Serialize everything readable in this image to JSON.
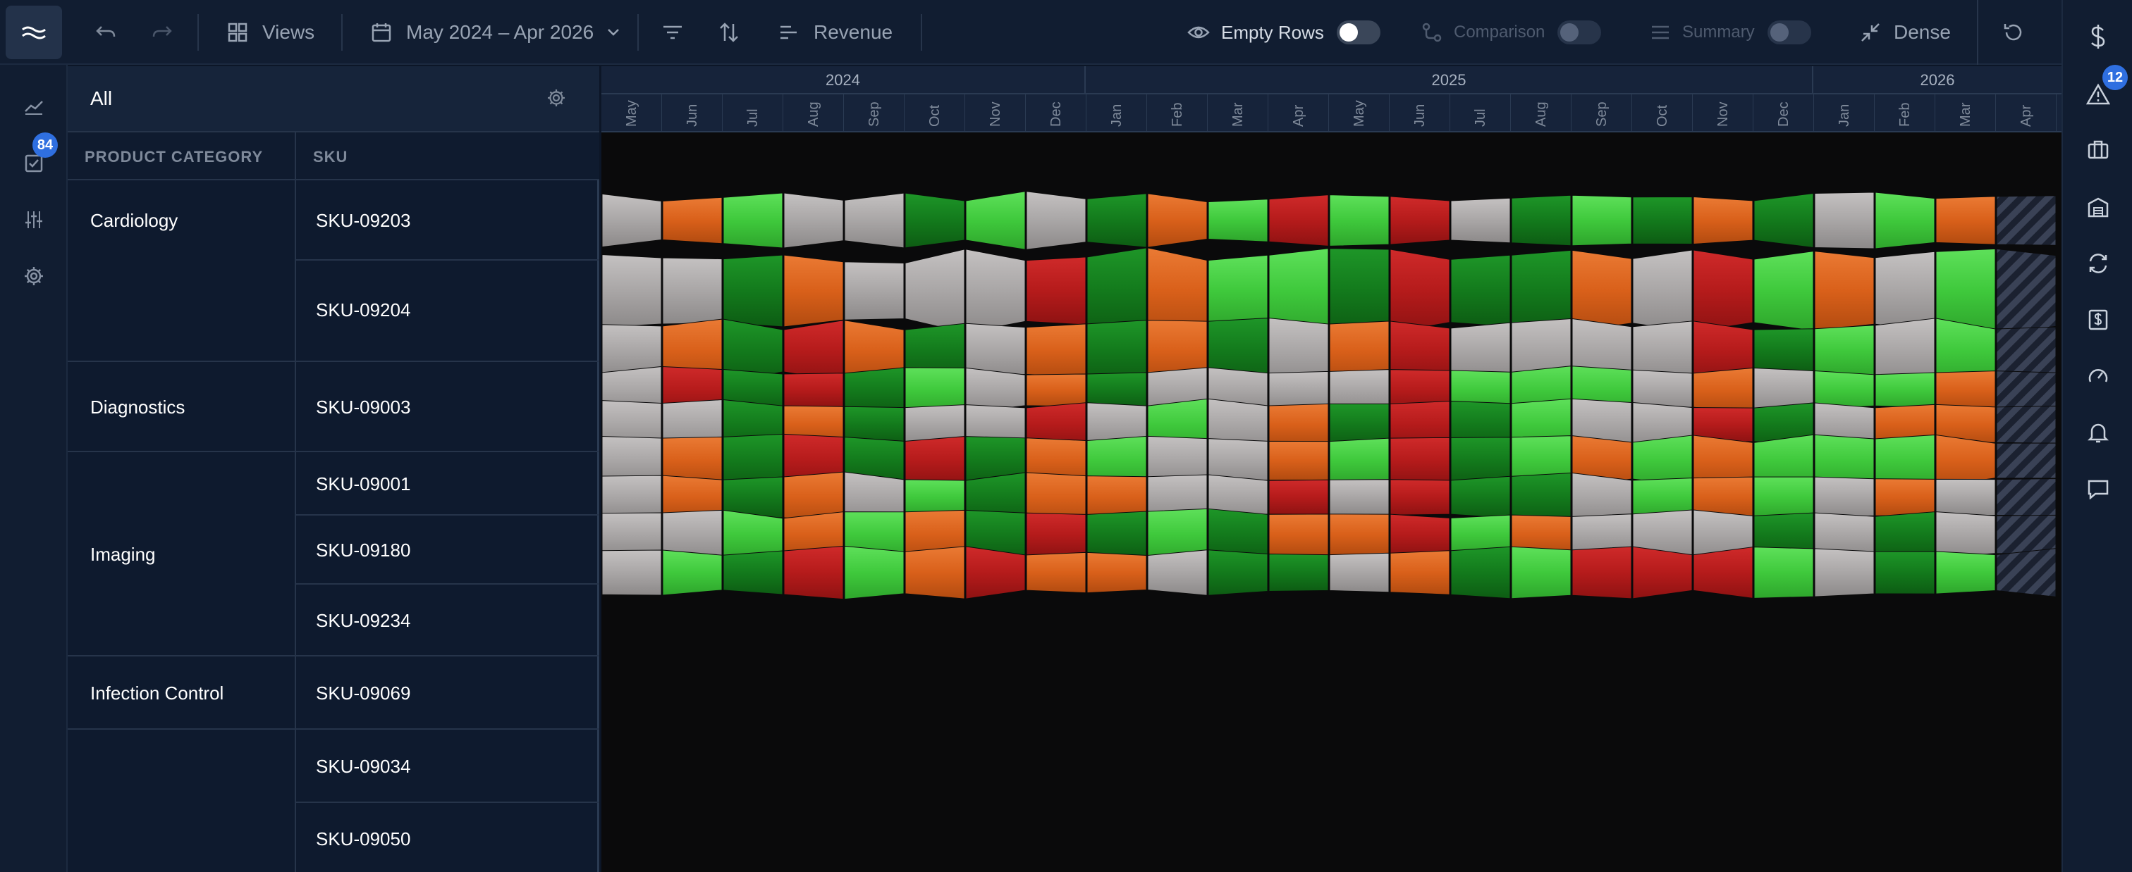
{
  "toolbar": {
    "views_label": "Views",
    "date_range": "May 2024 – Apr 2026",
    "measure_label": "Revenue",
    "empty_rows_label": "Empty Rows",
    "comparison_label": "Comparison",
    "summary_label": "Summary",
    "dense_label": "Dense"
  },
  "left_rail": {
    "tasks_badge": "84"
  },
  "right_rail": {
    "alerts_badge": "12"
  },
  "panel": {
    "filter_label": "All",
    "header_category": "PRODUCT CATEGORY",
    "header_sku": "SKU",
    "categories": [
      "Cardiology",
      "Diagnostics",
      "Imaging",
      "Infection Control"
    ],
    "skus": [
      "SKU-09203",
      "SKU-09204",
      "SKU-09003",
      "SKU-09001",
      "SKU-09180",
      "SKU-09234",
      "SKU-09069",
      "SKU-09034",
      "SKU-09050"
    ]
  },
  "timeline": {
    "years": [
      "2024",
      "2025",
      "2026"
    ],
    "months": [
      "May",
      "Jun",
      "Jul",
      "Aug",
      "Sep",
      "Oct",
      "Nov",
      "Dec",
      "Jan",
      "Feb",
      "Mar",
      "Apr",
      "May",
      "Jun",
      "Jul",
      "Aug",
      "Sep",
      "Oct",
      "Nov",
      "Dec",
      "Jan",
      "Feb",
      "Mar",
      "Apr"
    ]
  },
  "colors": {
    "gray": "#a9a6a6",
    "orange": "#d9601a",
    "light_green": "#3fc93c",
    "dark_green": "#137a1c",
    "red": "#b51b1b",
    "forecast_stripe": "#3a4256"
  },
  "heatmap": {
    "legend_codes": {
      "g": "gray",
      "o": "orange",
      "l": "light_green",
      "d": "dark_green",
      "r": "red",
      "x": "forecast_stripe"
    },
    "rows": [
      {
        "sku": "SKU-09203",
        "cells": [
          "g",
          "o",
          "l",
          "g",
          "g",
          "d",
          "l",
          "g",
          "d",
          "o",
          "l",
          "r",
          "l",
          "r",
          "g",
          "d",
          "l",
          "d",
          "o",
          "d",
          "g",
          "l",
          "o",
          "x"
        ]
      },
      {
        "sku": "SKU-09204",
        "cells": [
          "g",
          "g",
          "d",
          "o",
          "g",
          "g",
          "g",
          "r",
          "d",
          "o",
          "l",
          "l",
          "d",
          "r",
          "d",
          "d",
          "o",
          "g",
          "r",
          "l",
          "o",
          "g",
          "l",
          "x"
        ]
      },
      {
        "sku": "SKU-09003",
        "cells": [
          "g",
          "o",
          "d",
          "r",
          "o",
          "d",
          "g",
          "o",
          "d",
          "o",
          "d",
          "g",
          "o",
          "r",
          "g",
          "g",
          "g",
          "g",
          "r",
          "d",
          "l",
          "g",
          "l",
          "x"
        ]
      },
      {
        "sku": "SKU-09001",
        "cells": [
          "g",
          "r",
          "d",
          "r",
          "d",
          "l",
          "g",
          "o",
          "d",
          "g",
          "g",
          "g",
          "g",
          "r",
          "l",
          "l",
          "l",
          "g",
          "o",
          "g",
          "l",
          "l",
          "o",
          "x"
        ]
      },
      {
        "sku": "SKU-09180",
        "cells": [
          "g",
          "g",
          "d",
          "o",
          "d",
          "g",
          "g",
          "r",
          "g",
          "l",
          "g",
          "o",
          "d",
          "r",
          "d",
          "l",
          "g",
          "g",
          "r",
          "d",
          "g",
          "o",
          "o",
          "x"
        ]
      },
      {
        "sku": "SKU-09234",
        "cells": [
          "g",
          "o",
          "d",
          "r",
          "d",
          "r",
          "d",
          "o",
          "l",
          "g",
          "g",
          "o",
          "l",
          "r",
          "d",
          "l",
          "o",
          "l",
          "o",
          "l",
          "l",
          "l",
          "o",
          "x"
        ]
      },
      {
        "sku": "SKU-09069",
        "cells": [
          "g",
          "o",
          "d",
          "o",
          "g",
          "l",
          "d",
          "o",
          "o",
          "g",
          "g",
          "r",
          "g",
          "r",
          "d",
          "d",
          "g",
          "l",
          "o",
          "l",
          "g",
          "o",
          "g",
          "x"
        ]
      },
      {
        "sku": "SKU-09034",
        "cells": [
          "g",
          "g",
          "l",
          "o",
          "l",
          "o",
          "d",
          "r",
          "d",
          "l",
          "d",
          "o",
          "o",
          "r",
          "l",
          "o",
          "g",
          "g",
          "g",
          "d",
          "g",
          "d",
          "g",
          "x"
        ]
      },
      {
        "sku": "SKU-09050",
        "cells": [
          "g",
          "l",
          "d",
          "r",
          "l",
          "o",
          "r",
          "o",
          "o",
          "g",
          "d",
          "d",
          "g",
          "o",
          "d",
          "l",
          "r",
          "r",
          "r",
          "l",
          "g",
          "d",
          "l",
          "x"
        ]
      }
    ]
  }
}
